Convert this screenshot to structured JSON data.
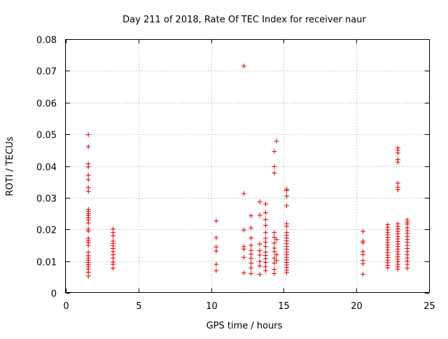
{
  "chart_data": {
    "type": "scatter",
    "title": "Day 211 of 2018, Rate Of TEC Index for receiver naur",
    "xlabel": "GPS time / hours",
    "ylabel": "ROTI / TECUs",
    "xlim": [
      0,
      25
    ],
    "ylim": [
      0,
      0.08
    ],
    "x_ticks": [
      0,
      5,
      10,
      15,
      20,
      25
    ],
    "x_tick_labels": [
      "0",
      "5",
      "10",
      "15",
      "20",
      "25"
    ],
    "y_ticks": [
      0,
      0.01,
      0.02,
      0.03,
      0.04,
      0.05,
      0.06,
      0.07,
      0.08
    ],
    "y_tick_labels": [
      "0",
      "0.01",
      "0.02",
      "0.03",
      "0.04",
      "0.05",
      "0.06",
      "0.07",
      "0.08"
    ],
    "grid": true,
    "marker": "+",
    "color": "#dd0000",
    "series": [
      {
        "points": [
          [
            1.55,
            0.0499
          ],
          [
            1.55,
            0.0461
          ],
          [
            1.55,
            0.0407
          ],
          [
            1.55,
            0.0397
          ],
          [
            1.55,
            0.0371
          ],
          [
            1.55,
            0.0357
          ],
          [
            1.55,
            0.0332
          ],
          [
            1.55,
            0.032
          ],
          [
            1.55,
            0.0263
          ],
          [
            1.55,
            0.0257
          ],
          [
            1.55,
            0.025
          ],
          [
            1.55,
            0.0244
          ],
          [
            1.55,
            0.0237
          ],
          [
            1.55,
            0.023
          ],
          [
            1.55,
            0.022
          ],
          [
            1.55,
            0.0201
          ],
          [
            1.55,
            0.0195
          ],
          [
            1.55,
            0.0172
          ],
          [
            1.55,
            0.0165
          ],
          [
            1.55,
            0.0158
          ],
          [
            1.55,
            0.015
          ],
          [
            1.55,
            0.0128
          ],
          [
            1.55,
            0.0117
          ],
          [
            1.55,
            0.011
          ],
          [
            1.55,
            0.0103
          ],
          [
            1.55,
            0.0096
          ],
          [
            1.55,
            0.0089
          ],
          [
            1.55,
            0.0082
          ],
          [
            1.55,
            0.0075
          ],
          [
            1.55,
            0.0065
          ],
          [
            1.55,
            0.0053
          ],
          [
            3.25,
            0.0201
          ],
          [
            3.25,
            0.019
          ],
          [
            3.25,
            0.018
          ],
          [
            3.25,
            0.0163
          ],
          [
            3.25,
            0.0156
          ],
          [
            3.25,
            0.0148
          ],
          [
            3.25,
            0.014
          ],
          [
            3.25,
            0.013
          ],
          [
            3.25,
            0.012
          ],
          [
            3.25,
            0.011
          ],
          [
            3.25,
            0.0097
          ],
          [
            3.25,
            0.009
          ],
          [
            3.25,
            0.0078
          ],
          [
            10.35,
            0.0227
          ],
          [
            10.35,
            0.0174
          ],
          [
            10.35,
            0.0145
          ],
          [
            10.35,
            0.0132
          ],
          [
            10.35,
            0.009
          ],
          [
            10.35,
            0.007
          ],
          [
            12.25,
            0.0715
          ],
          [
            12.25,
            0.0313
          ],
          [
            12.25,
            0.0198
          ],
          [
            12.25,
            0.0146
          ],
          [
            12.25,
            0.0138
          ],
          [
            12.25,
            0.0112
          ],
          [
            12.25,
            0.0063
          ],
          [
            12.75,
            0.0243
          ],
          [
            12.75,
            0.0205
          ],
          [
            12.75,
            0.0173
          ],
          [
            12.75,
            0.015
          ],
          [
            12.75,
            0.0134
          ],
          [
            12.75,
            0.0122
          ],
          [
            12.75,
            0.0109
          ],
          [
            12.75,
            0.0094
          ],
          [
            12.75,
            0.0079
          ],
          [
            12.75,
            0.0061
          ],
          [
            13.35,
            0.0287
          ],
          [
            13.35,
            0.0245
          ],
          [
            13.35,
            0.0154
          ],
          [
            13.35,
            0.0133
          ],
          [
            13.35,
            0.0119
          ],
          [
            13.35,
            0.0099
          ],
          [
            13.35,
            0.0085
          ],
          [
            13.35,
            0.0058
          ],
          [
            13.75,
            0.028
          ],
          [
            13.75,
            0.0253
          ],
          [
            13.75,
            0.0231
          ],
          [
            13.75,
            0.0213
          ],
          [
            13.75,
            0.019
          ],
          [
            13.75,
            0.0172
          ],
          [
            13.75,
            0.016
          ],
          [
            13.75,
            0.0146
          ],
          [
            13.75,
            0.0128
          ],
          [
            13.75,
            0.0118
          ],
          [
            13.75,
            0.0108
          ],
          [
            13.75,
            0.0096
          ],
          [
            13.75,
            0.0082
          ],
          [
            13.75,
            0.007
          ],
          [
            14.35,
            0.0446
          ],
          [
            14.35,
            0.0398
          ],
          [
            14.35,
            0.0378
          ],
          [
            14.35,
            0.019
          ],
          [
            14.35,
            0.0175
          ],
          [
            14.35,
            0.0157
          ],
          [
            14.35,
            0.0141
          ],
          [
            14.35,
            0.013
          ],
          [
            14.35,
            0.011
          ],
          [
            14.35,
            0.0094
          ],
          [
            14.35,
            0.0074
          ],
          [
            14.35,
            0.0061
          ],
          [
            14.5,
            0.0478
          ],
          [
            14.5,
            0.0168
          ],
          [
            14.5,
            0.012
          ],
          [
            14.5,
            0.0102
          ],
          [
            15.2,
            0.0327
          ],
          [
            15.2,
            0.0323
          ],
          [
            15.2,
            0.0305
          ],
          [
            15.2,
            0.0275
          ],
          [
            15.2,
            0.0218
          ],
          [
            15.2,
            0.021
          ],
          [
            15.2,
            0.019
          ],
          [
            15.2,
            0.0182
          ],
          [
            15.2,
            0.0173
          ],
          [
            15.2,
            0.0164
          ],
          [
            15.2,
            0.0155
          ],
          [
            15.2,
            0.0146
          ],
          [
            15.2,
            0.0138
          ],
          [
            15.2,
            0.0128
          ],
          [
            15.2,
            0.012
          ],
          [
            15.2,
            0.0112
          ],
          [
            15.2,
            0.0104
          ],
          [
            15.2,
            0.0096
          ],
          [
            15.2,
            0.0088
          ],
          [
            15.2,
            0.008
          ],
          [
            15.2,
            0.0072
          ],
          [
            15.2,
            0.0064
          ],
          [
            20.45,
            0.0194
          ],
          [
            20.45,
            0.0163
          ],
          [
            20.45,
            0.0158
          ],
          [
            20.45,
            0.013
          ],
          [
            20.45,
            0.0121
          ],
          [
            20.45,
            0.0102
          ],
          [
            20.45,
            0.0092
          ],
          [
            20.45,
            0.0059
          ],
          [
            22.15,
            0.0215
          ],
          [
            22.15,
            0.0207
          ],
          [
            22.15,
            0.0199
          ],
          [
            22.15,
            0.0191
          ],
          [
            22.15,
            0.0183
          ],
          [
            22.15,
            0.0175
          ],
          [
            22.15,
            0.0167
          ],
          [
            22.15,
            0.0159
          ],
          [
            22.15,
            0.0151
          ],
          [
            22.15,
            0.0143
          ],
          [
            22.15,
            0.0135
          ],
          [
            22.15,
            0.0127
          ],
          [
            22.15,
            0.0119
          ],
          [
            22.15,
            0.0111
          ],
          [
            22.15,
            0.0103
          ],
          [
            22.15,
            0.0095
          ],
          [
            22.15,
            0.0087
          ],
          [
            22.15,
            0.0079
          ],
          [
            22.85,
            0.0457
          ],
          [
            22.85,
            0.045
          ],
          [
            22.85,
            0.0441
          ],
          [
            22.85,
            0.042
          ],
          [
            22.85,
            0.0412
          ],
          [
            22.85,
            0.0346
          ],
          [
            22.85,
            0.0333
          ],
          [
            22.85,
            0.0325
          ],
          [
            22.85,
            0.0218
          ],
          [
            22.85,
            0.021
          ],
          [
            22.85,
            0.0202
          ],
          [
            22.85,
            0.0194
          ],
          [
            22.85,
            0.0186
          ],
          [
            22.85,
            0.0178
          ],
          [
            22.85,
            0.017
          ],
          [
            22.85,
            0.0162
          ],
          [
            22.85,
            0.0154
          ],
          [
            22.85,
            0.0146
          ],
          [
            22.85,
            0.0138
          ],
          [
            22.85,
            0.013
          ],
          [
            22.85,
            0.0122
          ],
          [
            22.85,
            0.0114
          ],
          [
            22.85,
            0.0106
          ],
          [
            22.85,
            0.0098
          ],
          [
            22.85,
            0.009
          ],
          [
            22.85,
            0.0082
          ],
          [
            22.85,
            0.0075
          ],
          [
            23.5,
            0.023
          ],
          [
            23.5,
            0.0223
          ],
          [
            23.5,
            0.0217
          ],
          [
            23.5,
            0.0205
          ],
          [
            23.5,
            0.0196
          ],
          [
            23.5,
            0.0188
          ],
          [
            23.5,
            0.0178
          ],
          [
            23.5,
            0.0169
          ],
          [
            23.5,
            0.016
          ],
          [
            23.5,
            0.015
          ],
          [
            23.5,
            0.014
          ],
          [
            23.5,
            0.013
          ],
          [
            23.5,
            0.012
          ],
          [
            23.5,
            0.011
          ],
          [
            23.5,
            0.01
          ],
          [
            23.5,
            0.009
          ],
          [
            23.5,
            0.0078
          ]
        ]
      }
    ]
  }
}
